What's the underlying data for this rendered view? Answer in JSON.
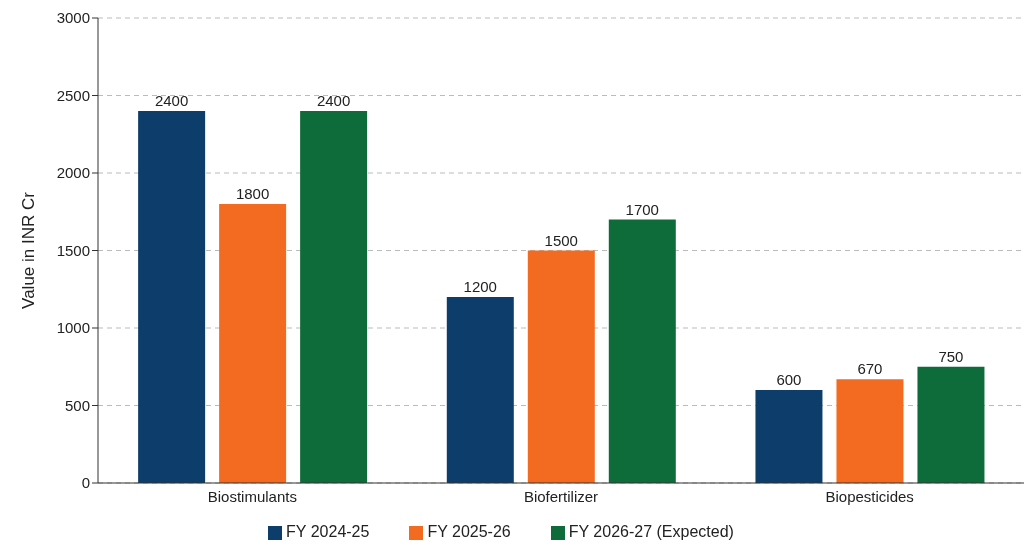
{
  "chart_data": {
    "type": "bar",
    "ylabel": "Value in INR Cr",
    "categories": [
      "Biostimulants",
      "Biofertilizer",
      "Biopesticides"
    ],
    "series": [
      {
        "name": "FY 2024-25",
        "color": "#0d3d6b",
        "values": [
          2400,
          1200,
          600
        ]
      },
      {
        "name": "FY 2025-26",
        "color": "#f26b21",
        "values": [
          1800,
          1500,
          670
        ]
      },
      {
        "name": "FY 2026-27 (Expected)",
        "color": "#0e6b3a",
        "values": [
          2400,
          1700,
          750
        ]
      }
    ],
    "ylim": [
      0,
      3000
    ],
    "yticks": [
      0,
      500,
      1000,
      1500,
      2000,
      2500,
      3000
    ],
    "grid": "y",
    "legend": "bottom",
    "data_labels": true
  }
}
